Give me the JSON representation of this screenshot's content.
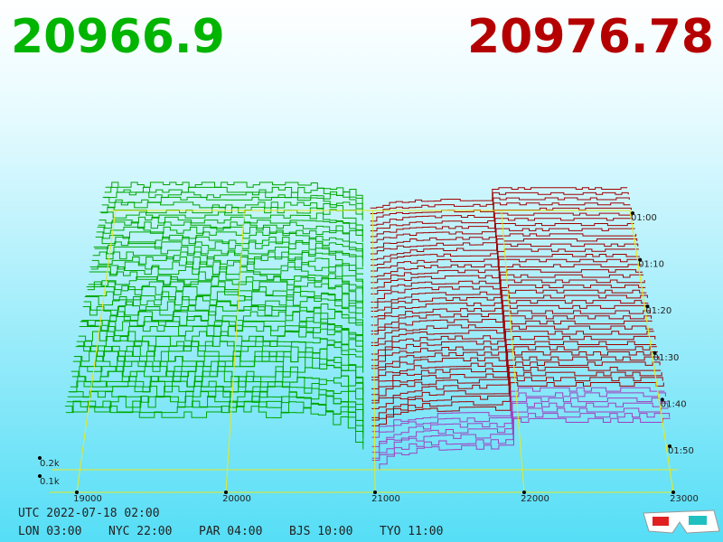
{
  "prices": {
    "bid": "20966.9",
    "ask": "20976.78"
  },
  "price_axis": {
    "ticks": [
      "19000",
      "20000",
      "21000",
      "22000",
      "23000"
    ]
  },
  "depth_axis": {
    "ticks": [
      "0.2k",
      "0.1k"
    ]
  },
  "time_axis": {
    "ticks": [
      "01:00",
      "01:10",
      "01:20",
      "01:30",
      "01:40",
      "01:50"
    ]
  },
  "footer": {
    "utc": "UTC 2022-07-18 02:00",
    "zones": [
      "LON 03:00",
      "NYC 22:00",
      "PAR 04:00",
      "BJS 10:00",
      "TYO 11:00"
    ]
  }
}
